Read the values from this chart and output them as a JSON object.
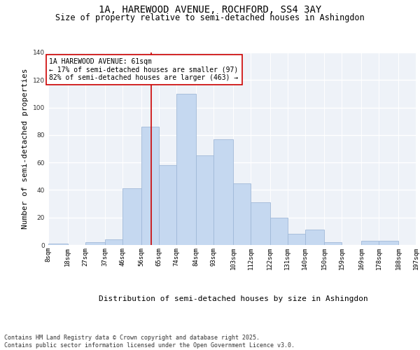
{
  "title": "1A, HAREWOOD AVENUE, ROCHFORD, SS4 3AY",
  "subtitle": "Size of property relative to semi-detached houses in Ashingdon",
  "xlabel": "Distribution of semi-detached houses by size in Ashingdon",
  "ylabel": "Number of semi-detached properties",
  "bins": [
    8,
    18,
    27,
    37,
    46,
    56,
    65,
    74,
    84,
    93,
    103,
    112,
    122,
    131,
    140,
    150,
    159,
    169,
    178,
    188,
    197
  ],
  "bin_labels": [
    "8sqm",
    "18sqm",
    "27sqm",
    "37sqm",
    "46sqm",
    "56sqm",
    "65sqm",
    "74sqm",
    "84sqm",
    "93sqm",
    "103sqm",
    "112sqm",
    "122sqm",
    "131sqm",
    "140sqm",
    "150sqm",
    "159sqm",
    "169sqm",
    "178sqm",
    "188sqm",
    "197sqm"
  ],
  "counts": [
    1,
    0,
    2,
    4,
    41,
    86,
    58,
    110,
    65,
    77,
    45,
    31,
    20,
    8,
    11,
    2,
    0,
    3,
    3,
    0
  ],
  "bar_color": "#c5d8f0",
  "bar_edge_color": "#a0b8d8",
  "property_size": 61,
  "vline_color": "#cc0000",
  "annotation_line1": "1A HAREWOOD AVENUE: 61sqm",
  "annotation_line2": "← 17% of semi-detached houses are smaller (97)",
  "annotation_line3": "82% of semi-detached houses are larger (463) →",
  "annotation_box_color": "#ffffff",
  "annotation_box_edge": "#cc0000",
  "ylim": [
    0,
    140
  ],
  "yticks": [
    0,
    20,
    40,
    60,
    80,
    100,
    120,
    140
  ],
  "footer": "Contains HM Land Registry data © Crown copyright and database right 2025.\nContains public sector information licensed under the Open Government Licence v3.0.",
  "bg_color": "#eef2f8",
  "grid_color": "#ffffff",
  "title_fontsize": 10,
  "subtitle_fontsize": 8.5,
  "axis_label_fontsize": 8,
  "tick_fontsize": 6.5,
  "footer_fontsize": 6,
  "annotation_fontsize": 7
}
